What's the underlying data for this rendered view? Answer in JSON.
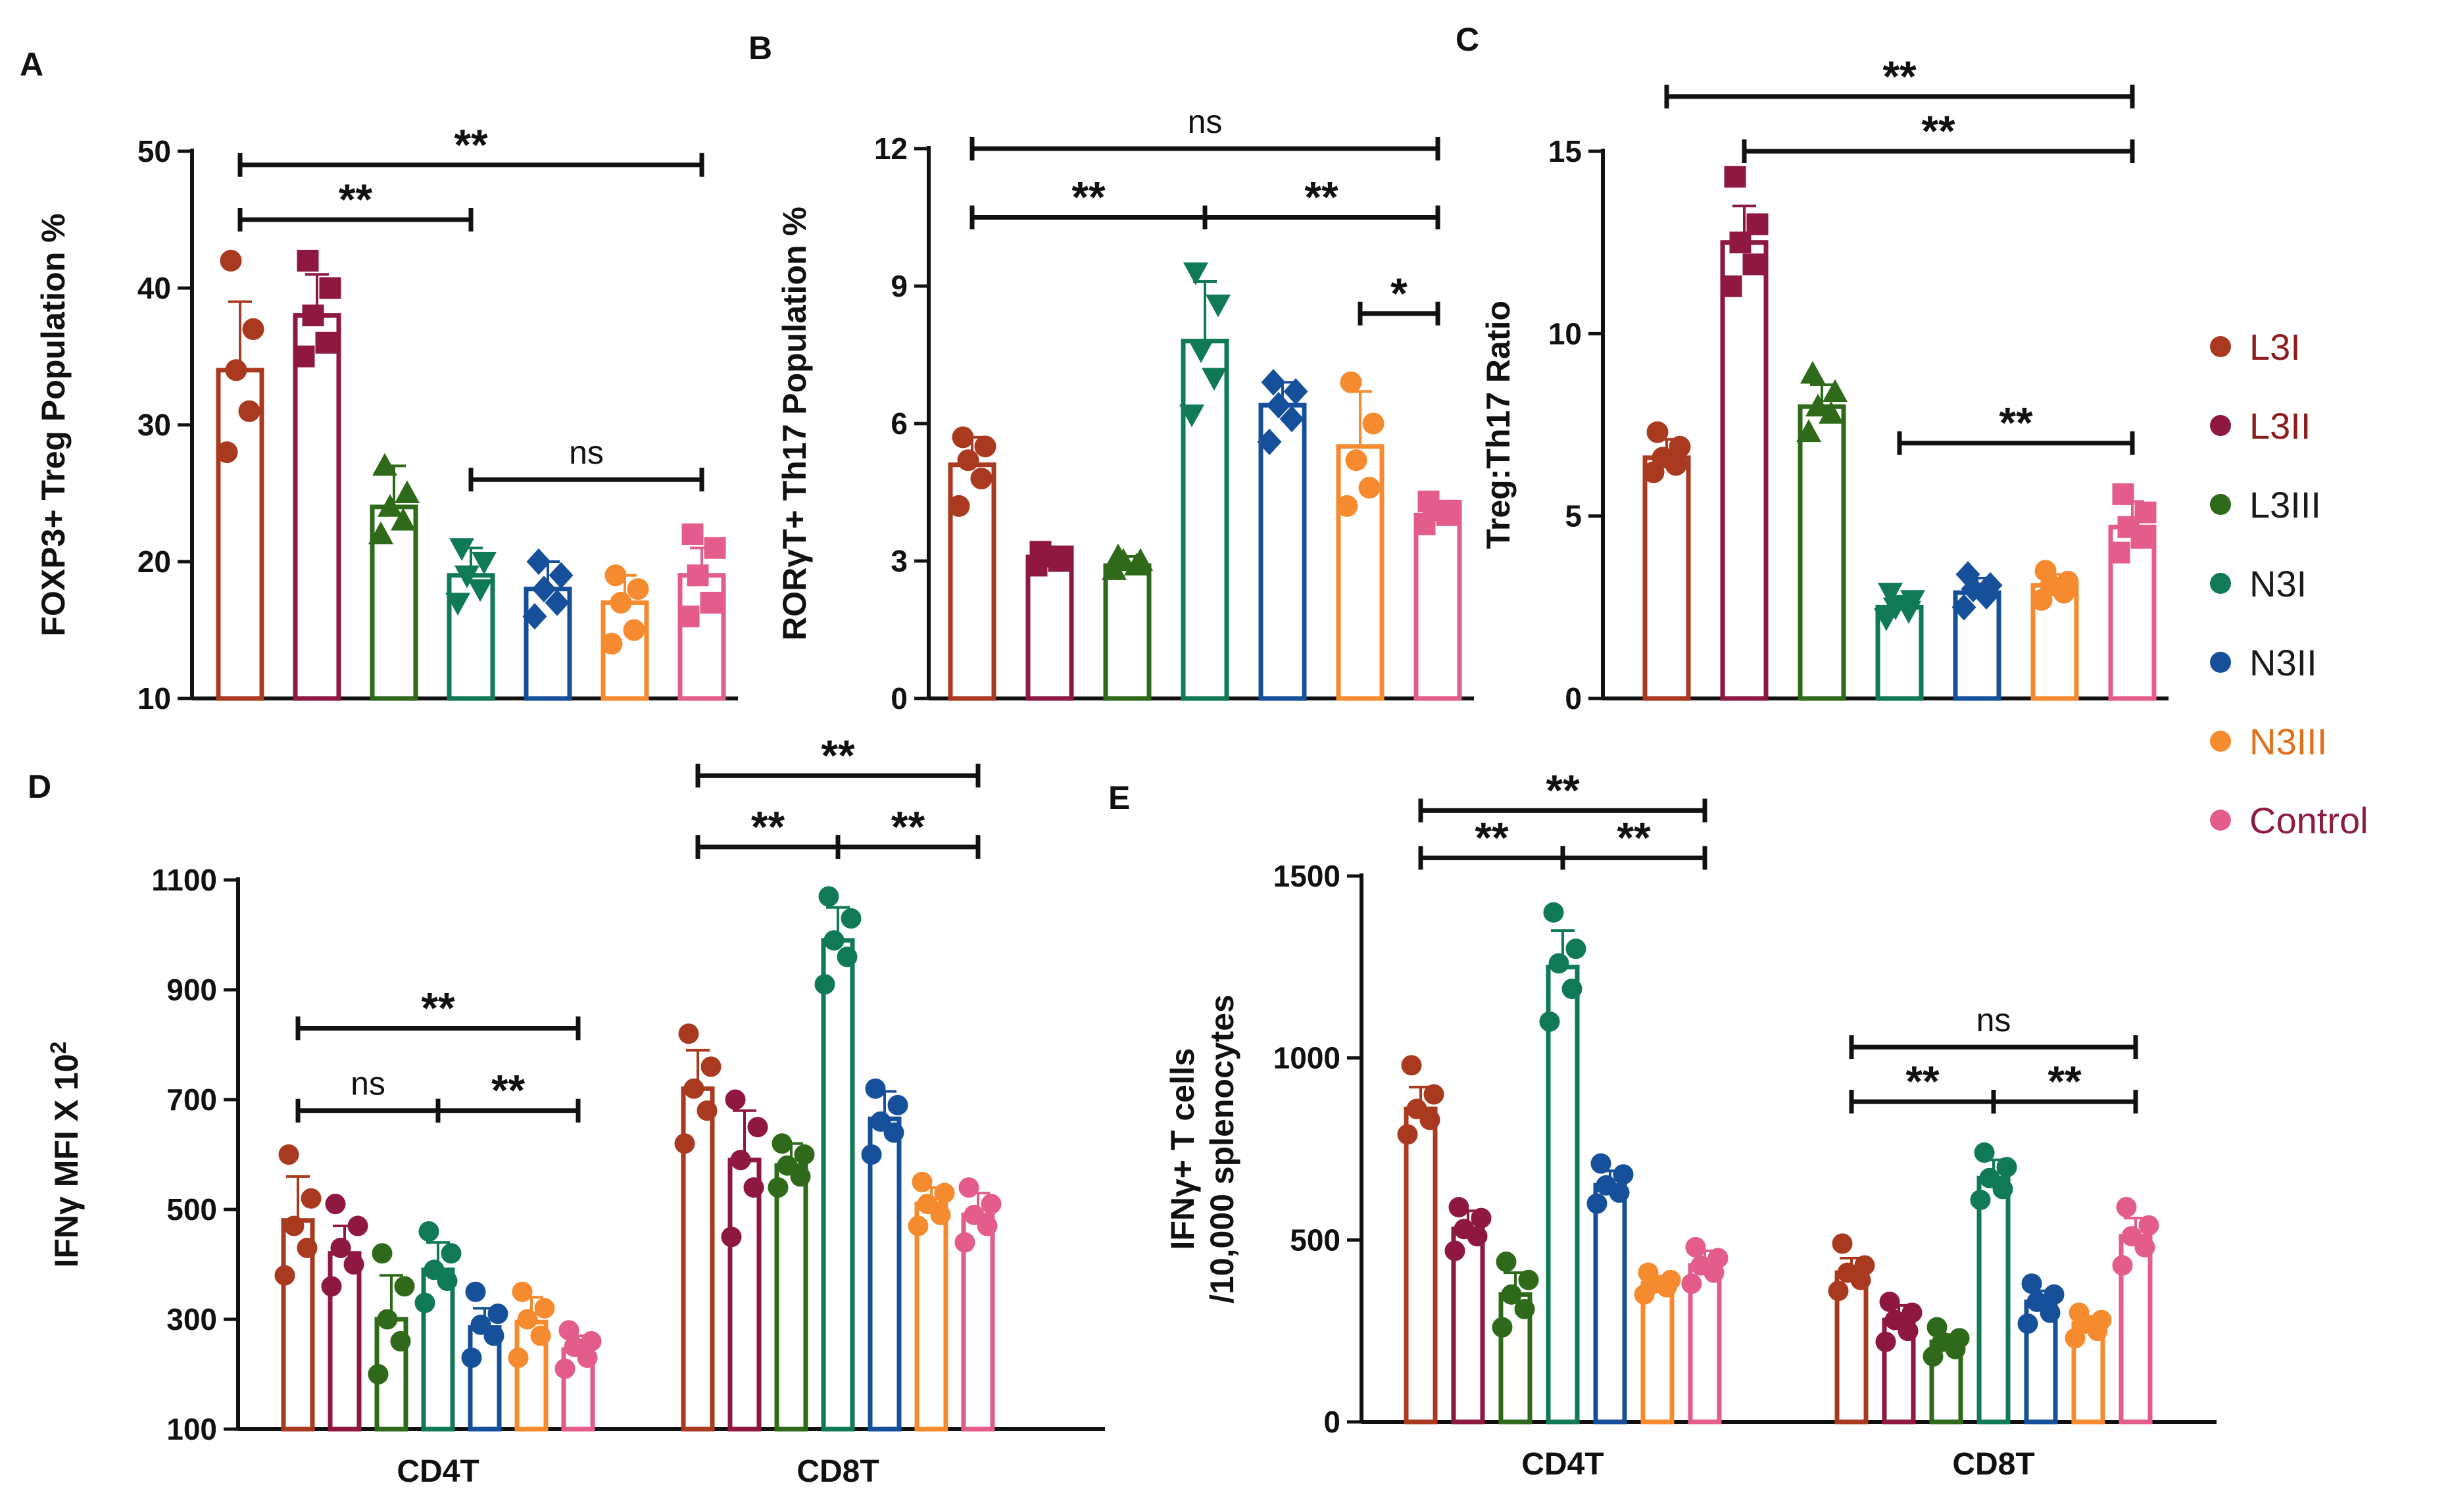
{
  "figure": {
    "groups": [
      "L3I",
      "L3II",
      "L3III",
      "N3I",
      "N3II",
      "N3III",
      "Control"
    ],
    "legend": [
      {
        "label": "L3I",
        "dot": "#a93a1f",
        "text": "#8c1d1d"
      },
      {
        "label": "L3II",
        "dot": "#8e1840",
        "text": "#8c1d1d"
      },
      {
        "label": "L3III",
        "dot": "#2f6a1a",
        "text": "#1a1a1a"
      },
      {
        "label": "N3I",
        "dot": "#107a56",
        "text": "#1a1a1a"
      },
      {
        "label": "N3II",
        "dot": "#17509a",
        "text": "#1a1a1a"
      },
      {
        "label": "N3III",
        "dot": "#f58a2e",
        "text": "#e0701a"
      },
      {
        "label": "Control",
        "dot": "#e35c8c",
        "text": "#8c1d3d"
      }
    ]
  },
  "chart_data": [
    {
      "panel": "A",
      "type": "bar",
      "ylabel": "FOXP3+ Treg Population %",
      "ylim": [
        10,
        50
      ],
      "yticks": [
        "10",
        "20",
        "30",
        "40",
        "50"
      ],
      "categories": [
        "L3I",
        "L3II",
        "L3III",
        "N3I",
        "N3II",
        "N3III",
        "Control"
      ],
      "values": [
        34,
        38,
        24,
        19,
        18,
        17,
        19
      ],
      "errors": [
        5,
        3,
        3,
        2,
        2,
        2,
        2
      ],
      "markers": [
        "circle",
        "square",
        "triangle",
        "triangle-down",
        "diamond",
        "circle",
        "square"
      ],
      "points": [
        [
          28,
          31,
          34,
          37,
          42
        ],
        [
          35,
          36,
          38,
          40,
          42
        ],
        [
          22,
          23,
          24,
          25,
          27
        ],
        [
          17,
          18,
          19,
          20,
          21
        ],
        [
          16,
          17,
          18,
          19,
          20
        ],
        [
          14,
          15,
          17,
          18,
          19
        ],
        [
          16,
          17,
          19,
          21,
          22
        ]
      ],
      "significance": [
        {
          "from": 0,
          "to": 3,
          "label": "**",
          "y": 45
        },
        {
          "from": 0,
          "to": 6,
          "label": "**",
          "y": 49
        },
        {
          "from": 3,
          "to": 6,
          "label": "ns",
          "y": 26
        }
      ]
    },
    {
      "panel": "B",
      "type": "bar",
      "ylabel": "RORγT+ Th17 Population %",
      "ylim": [
        0,
        12
      ],
      "yticks": [
        "0",
        "3",
        "6",
        "9",
        "12"
      ],
      "categories": [
        "L3I",
        "L3II",
        "L3III",
        "N3I",
        "N3II",
        "N3III",
        "Control"
      ],
      "values": [
        5.1,
        3.0,
        2.9,
        7.8,
        6.4,
        5.5,
        4.0
      ],
      "errors": [
        0.6,
        0.2,
        0.2,
        1.3,
        0.5,
        1.2,
        0.2
      ],
      "markers": [
        "circle",
        "square",
        "triangle",
        "triangle-down",
        "diamond",
        "circle",
        "square"
      ],
      "points": [
        [
          4.2,
          4.8,
          5.2,
          5.5,
          5.7
        ],
        [
          2.9,
          3.0,
          3.1,
          3.1,
          3.2
        ],
        [
          2.8,
          2.9,
          3.0,
          3.0,
          3.1
        ],
        [
          6.2,
          7.0,
          7.6,
          8.6,
          9.3
        ],
        [
          5.6,
          6.1,
          6.4,
          6.7,
          6.9
        ],
        [
          4.2,
          4.6,
          5.2,
          6.0,
          6.9
        ],
        [
          3.8,
          4.0,
          4.1,
          4.1,
          4.3
        ]
      ],
      "significance": [
        {
          "from": 0,
          "to": 6,
          "label": "ns",
          "y": 12
        },
        {
          "from": 0,
          "to": 3,
          "label": "**",
          "y": 10.5
        },
        {
          "from": 3,
          "to": 6,
          "label": "**",
          "y": 10.5
        },
        {
          "from": 5,
          "to": 6,
          "label": "*",
          "y": 8.4
        }
      ]
    },
    {
      "panel": "C",
      "type": "bar",
      "ylabel": "Treg:Th17 Ratio",
      "ylim": [
        0,
        15
      ],
      "yticks": [
        "0",
        "5",
        "10",
        "15"
      ],
      "categories": [
        "L3I",
        "L3II",
        "L3III",
        "N3I",
        "N3II",
        "N3III",
        "Control"
      ],
      "values": [
        6.6,
        12.5,
        8.0,
        2.5,
        2.9,
        3.1,
        4.7
      ],
      "errors": [
        0.5,
        1.0,
        0.6,
        0.3,
        0.4,
        0.3,
        0.7
      ],
      "markers": [
        "circle",
        "square",
        "triangle",
        "triangle-down",
        "diamond",
        "circle",
        "square"
      ],
      "points": [
        [
          6.2,
          6.4,
          6.6,
          6.9,
          7.3
        ],
        [
          11.3,
          11.9,
          12.5,
          13.0,
          14.3
        ],
        [
          7.3,
          7.8,
          8.0,
          8.4,
          8.9
        ],
        [
          2.2,
          2.4,
          2.5,
          2.7,
          2.9
        ],
        [
          2.5,
          2.8,
          3.0,
          3.1,
          3.4
        ],
        [
          2.7,
          2.9,
          3.1,
          3.2,
          3.5
        ],
        [
          4.0,
          4.4,
          4.7,
          5.1,
          5.6
        ]
      ],
      "significance": [
        {
          "from": 0,
          "to": 6,
          "label": "**",
          "y": 16.5
        },
        {
          "from": 1,
          "to": 6,
          "label": "**",
          "y": 15
        },
        {
          "from": 3,
          "to": 6,
          "label": "**",
          "y": 7
        }
      ]
    },
    {
      "panel": "D",
      "type": "grouped-bar",
      "ylabel": "IFNγ MFI X 10",
      "ylabel_sup": "2",
      "ylim": [
        100,
        1100
      ],
      "yticks": [
        "100",
        "300",
        "500",
        "700",
        "900",
        "1100"
      ],
      "x_groups": [
        "CD4T",
        "CD8T"
      ],
      "categories": [
        "L3I",
        "L3II",
        "L3III",
        "N3I",
        "N3II",
        "N3III",
        "Control"
      ],
      "series": [
        {
          "name": "CD4T",
          "values": [
            480,
            420,
            300,
            390,
            285,
            295,
            245
          ],
          "errors": [
            80,
            50,
            80,
            50,
            35,
            45,
            25
          ],
          "points": [
            [
              380,
              430,
              470,
              520,
              600
            ],
            [
              360,
              400,
              430,
              470,
              510
            ],
            [
              200,
              260,
              300,
              360,
              420
            ],
            [
              330,
              370,
              390,
              420,
              460
            ],
            [
              230,
              270,
              290,
              310,
              350
            ],
            [
              230,
              270,
              300,
              320,
              350
            ],
            [
              210,
              230,
              250,
              260,
              280
            ]
          ]
        },
        {
          "name": "CD8T",
          "values": [
            720,
            590,
            580,
            990,
            665,
            510,
            490
          ],
          "errors": [
            70,
            90,
            40,
            60,
            50,
            30,
            40
          ],
          "points": [
            [
              620,
              680,
              720,
              760,
              820
            ],
            [
              450,
              540,
              590,
              650,
              700
            ],
            [
              540,
              560,
              580,
              600,
              620
            ],
            [
              910,
              960,
              990,
              1030,
              1070
            ],
            [
              600,
              640,
              660,
              690,
              720
            ],
            [
              470,
              490,
              510,
              530,
              550
            ],
            [
              440,
              470,
              490,
              510,
              540
            ]
          ]
        }
      ],
      "significance": [
        {
          "group": 0,
          "from": 0,
          "to": 6,
          "label": "**",
          "y": 830
        },
        {
          "group": 0,
          "from": 0,
          "to": 3,
          "label": "ns",
          "y": 680
        },
        {
          "group": 0,
          "from": 3,
          "to": 6,
          "label": "**",
          "y": 680
        },
        {
          "group": 1,
          "from": 0,
          "to": 6,
          "label": "**",
          "y": 1290
        },
        {
          "group": 1,
          "from": 0,
          "to": 3,
          "label": "**",
          "y": 1160
        },
        {
          "group": 1,
          "from": 3,
          "to": 6,
          "label": "**",
          "y": 1160
        }
      ]
    },
    {
      "panel": "E",
      "type": "grouped-bar",
      "ylabel": "IFNγ+ T cells",
      "ylabel2": "/10,000 splenocytes",
      "ylim": [
        0,
        1500
      ],
      "yticks": [
        "0",
        "500",
        "1000",
        "1500"
      ],
      "x_groups": [
        "CD4T",
        "CD8T"
      ],
      "categories": [
        "L3I",
        "L3II",
        "L3III",
        "N3I",
        "N3II",
        "N3III",
        "Control"
      ],
      "series": [
        {
          "name": "CD4T",
          "values": [
            860,
            530,
            350,
            1250,
            650,
            380,
            430
          ],
          "errors": [
            60,
            50,
            60,
            100,
            40,
            20,
            40
          ],
          "points": [
            [
              790,
              830,
              860,
              900,
              980
            ],
            [
              470,
              510,
              530,
              560,
              590
            ],
            [
              260,
              310,
              350,
              390,
              440
            ],
            [
              1100,
              1190,
              1260,
              1300,
              1400
            ],
            [
              600,
              630,
              650,
              680,
              710
            ],
            [
              350,
              370,
              380,
              390,
              410
            ],
            [
              380,
              410,
              430,
              450,
              480
            ]
          ]
        },
        {
          "name": "CD8T",
          "values": [
            410,
            280,
            220,
            670,
            330,
            270,
            510
          ],
          "errors": [
            40,
            40,
            20,
            50,
            30,
            20,
            50
          ],
          "points": [
            [
              360,
              390,
              410,
              430,
              490
            ],
            [
              220,
              250,
              280,
              300,
              330
            ],
            [
              180,
              200,
              220,
              230,
              260
            ],
            [
              610,
              640,
              670,
              700,
              740
            ],
            [
              270,
              300,
              330,
              350,
              380
            ],
            [
              230,
              250,
              270,
              280,
              300
            ],
            [
              430,
              480,
              510,
              540,
              590
            ]
          ]
        }
      ],
      "significance": [
        {
          "group": 0,
          "from": 0,
          "to": 6,
          "label": "**",
          "y": 1680
        },
        {
          "group": 0,
          "from": 0,
          "to": 3,
          "label": "**",
          "y": 1550
        },
        {
          "group": 0,
          "from": 3,
          "to": 6,
          "label": "**",
          "y": 1550
        },
        {
          "group": 1,
          "from": 0,
          "to": 6,
          "label": "ns",
          "y": 1030
        },
        {
          "group": 1,
          "from": 0,
          "to": 3,
          "label": "**",
          "y": 880
        },
        {
          "group": 1,
          "from": 3,
          "to": 6,
          "label": "**",
          "y": 880
        }
      ]
    }
  ]
}
